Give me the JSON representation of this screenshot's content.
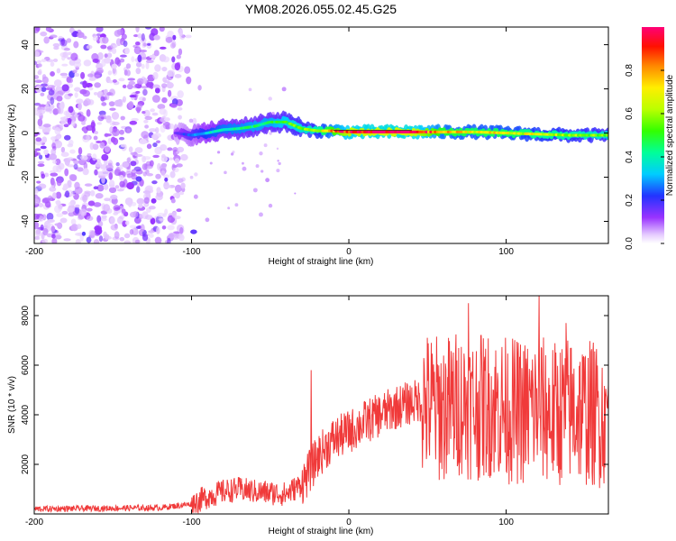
{
  "title": "YM08.2026.055.02.45.G25",
  "chart_data": [
    {
      "type": "heatmap",
      "xlabel": "Height of straight line (km)",
      "ylabel": "Frequency (Hz)",
      "xlim": [
        -200,
        165
      ],
      "ylim": [
        -50,
        48
      ],
      "xticks": [
        -200,
        -100,
        0,
        100
      ],
      "yticks": [
        -40,
        -20,
        0,
        20,
        40
      ],
      "colorbar": {
        "label": "Normalized spectral amplitude",
        "range": [
          0,
          1
        ],
        "ticks": [
          0.0,
          0.2,
          0.4,
          0.6,
          0.8
        ]
      },
      "ridge": [
        {
          "x": -110,
          "y": 0.0,
          "amp": 0.15
        },
        {
          "x": -100,
          "y": -1.0,
          "amp": 0.25
        },
        {
          "x": -90,
          "y": 0.0,
          "amp": 0.35
        },
        {
          "x": -80,
          "y": 1.5,
          "amp": 0.4
        },
        {
          "x": -70,
          "y": 2.0,
          "amp": 0.42
        },
        {
          "x": -60,
          "y": 3.0,
          "amp": 0.45
        },
        {
          "x": -50,
          "y": 5.0,
          "amp": 0.45
        },
        {
          "x": -40,
          "y": 5.0,
          "amp": 0.5
        },
        {
          "x": -30,
          "y": 2.0,
          "amp": 0.55
        },
        {
          "x": -20,
          "y": 1.0,
          "amp": 0.6
        },
        {
          "x": -10,
          "y": 1.0,
          "amp": 0.8
        },
        {
          "x": 0,
          "y": 0.5,
          "amp": 0.95
        },
        {
          "x": 20,
          "y": 0.5,
          "amp": 1.0
        },
        {
          "x": 40,
          "y": 0.5,
          "amp": 1.0
        },
        {
          "x": 60,
          "y": 0.5,
          "amp": 0.75
        },
        {
          "x": 80,
          "y": 0.5,
          "amp": 0.7
        },
        {
          "x": 100,
          "y": 0.0,
          "amp": 0.7
        },
        {
          "x": 120,
          "y": -0.5,
          "amp": 0.65
        },
        {
          "x": 140,
          "y": -1.0,
          "amp": 0.6
        },
        {
          "x": 160,
          "y": -1.0,
          "amp": 0.55
        }
      ]
    },
    {
      "type": "line",
      "xlabel": "Height of straight line (km)",
      "ylabel": "SNR (10 * v/v)",
      "xlim": [
        -200,
        165
      ],
      "ylim": [
        0,
        8800
      ],
      "xticks": [
        -200,
        -100,
        0,
        100
      ],
      "yticks": [
        2000,
        4000,
        6000,
        8000
      ],
      "color": "#f03a3a",
      "series": [
        {
          "name": "SNR envelope",
          "x": [
            -200,
            -120,
            -100,
            -90,
            -80,
            -70,
            -60,
            -50,
            -40,
            -30,
            -25,
            -20,
            -10,
            0,
            10,
            20,
            30,
            40,
            46,
            50,
            60,
            70,
            80,
            90,
            100,
            110,
            120,
            130,
            140,
            150,
            160,
            165
          ],
          "y": [
            200,
            250,
            400,
            700,
            900,
            1000,
            900,
            850,
            800,
            1200,
            1700,
            2300,
            3000,
            3300,
            3700,
            4000,
            4300,
            4500,
            4600,
            4400,
            4200,
            4500,
            4300,
            4400,
            4200,
            4100,
            4300,
            4000,
            4200,
            4100,
            4000,
            4200
          ]
        }
      ],
      "annotations": {
        "spike_peaks": [
          {
            "x": -24,
            "y": 5800
          },
          {
            "x": 76,
            "y": 8500
          },
          {
            "x": 84,
            "y": 7200
          },
          {
            "x": 121,
            "y": 8800
          },
          {
            "x": 138,
            "y": 7700
          },
          {
            "x": 163,
            "y": 4800
          }
        ]
      }
    }
  ]
}
